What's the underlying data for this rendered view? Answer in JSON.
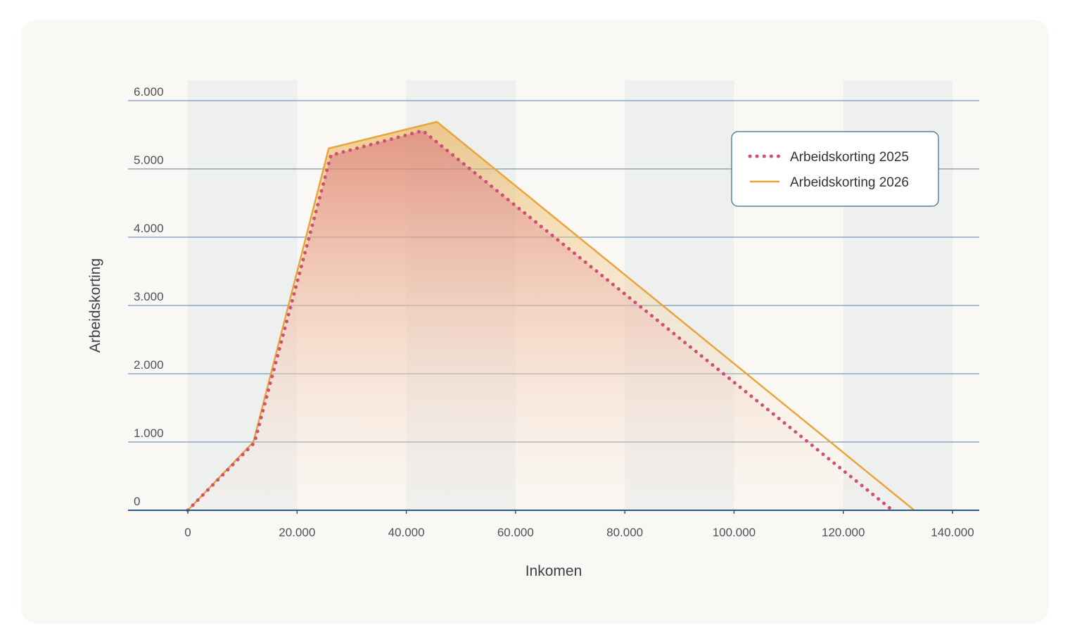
{
  "chart_data": {
    "type": "line",
    "xlabel": "Inkomen",
    "ylabel": "Arbeidskorting",
    "xlim": [
      -11000,
      145500
    ],
    "ylim": [
      0,
      6000
    ],
    "x_ticks": [
      {
        "value": 0,
        "label": "0"
      },
      {
        "value": 20000,
        "label": "20.000"
      },
      {
        "value": 40000,
        "label": "40.000"
      },
      {
        "value": 60000,
        "label": "60.000"
      },
      {
        "value": 80000,
        "label": "80.000"
      },
      {
        "value": 100000,
        "label": "100.000"
      },
      {
        "value": 120000,
        "label": "120.000"
      },
      {
        "value": 140000,
        "label": "140.000"
      }
    ],
    "y_ticks": [
      {
        "value": 0,
        "label": "0"
      },
      {
        "value": 1000,
        "label": "1.000"
      },
      {
        "value": 2000,
        "label": "2.000"
      },
      {
        "value": 3000,
        "label": "3.000"
      },
      {
        "value": 4000,
        "label": "4.000"
      },
      {
        "value": 5000,
        "label": "5.000"
      },
      {
        "value": 6000,
        "label": "6.000"
      }
    ],
    "bands": [
      [
        0,
        20000
      ],
      [
        40000,
        60000
      ],
      [
        80000,
        100000
      ],
      [
        120000,
        140000
      ]
    ],
    "grid": true,
    "legend_position": "top-right",
    "series": [
      {
        "name": "Arbeidskorting 2025",
        "style": "dotted",
        "color": "#cc5078",
        "points": [
          [
            0,
            0
          ],
          [
            12200,
            990
          ],
          [
            26200,
            5200
          ],
          [
            43000,
            5560
          ],
          [
            129000,
            0
          ]
        ]
      },
      {
        "name": "Arbeidskorting 2026",
        "style": "solid",
        "color": "#e9a53b",
        "points": [
          [
            0,
            0
          ],
          [
            12000,
            1000
          ],
          [
            25800,
            5300
          ],
          [
            45600,
            5690
          ],
          [
            133000,
            0
          ]
        ]
      }
    ]
  }
}
